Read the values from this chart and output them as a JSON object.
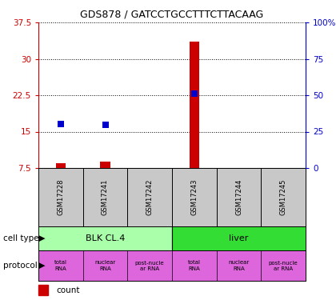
{
  "title": "GDS878 / GATCCTGCCTTTCTTACAAG",
  "samples": [
    "GSM17228",
    "GSM17241",
    "GSM17242",
    "GSM17243",
    "GSM17244",
    "GSM17245"
  ],
  "count_values": [
    8.5,
    8.8,
    7.5,
    33.5,
    7.5,
    7.5
  ],
  "percentile_values": [
    30.0,
    29.5,
    null,
    51.0,
    null,
    null
  ],
  "ylim_left": [
    7.5,
    37.5
  ],
  "ylim_right": [
    0,
    100
  ],
  "yticks_left": [
    7.5,
    15.0,
    22.5,
    30.0,
    37.5
  ],
  "yticks_right": [
    0,
    25,
    50,
    75,
    100
  ],
  "ytick_labels_left": [
    "7.5",
    "15",
    "22.5",
    "30",
    "37.5"
  ],
  "ytick_labels_right": [
    "0",
    "25",
    "50",
    "75",
    "100%"
  ],
  "cell_types": [
    {
      "label": "BLK CL.4",
      "span": [
        0,
        3
      ],
      "color": "#AAFFAA"
    },
    {
      "label": "liver",
      "span": [
        3,
        6
      ],
      "color": "#33DD33"
    }
  ],
  "protocol_labels": [
    "total\nRNA",
    "nuclear\nRNA",
    "post-nucle\nar RNA",
    "total\nRNA",
    "nuclear\nRNA",
    "post-nucle\nar RNA"
  ],
  "protocol_color": "#DD66DD",
  "count_color": "#CC0000",
  "percentile_color": "#0000CC",
  "bar_width": 0.22,
  "marker_size": 6,
  "dotted_line_color": "#000000",
  "axis_left_color": "#CC0000",
  "axis_right_color": "#0000CC",
  "sample_bg_color": "#C8C8C8"
}
